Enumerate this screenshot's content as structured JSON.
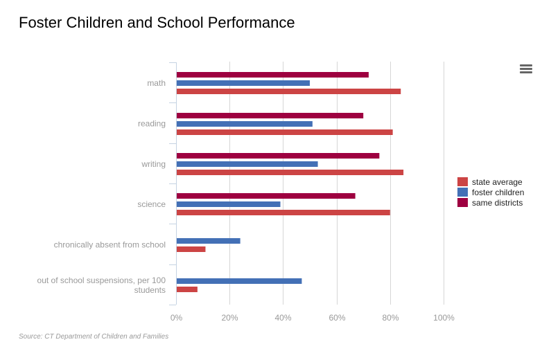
{
  "page": {
    "title": "Foster Children and School Performance",
    "source": "Source: CT Department of Children and Families",
    "menu_icon": "hamburger-menu-icon"
  },
  "chart_data": {
    "type": "bar",
    "orientation": "horizontal",
    "title": "Foster Children and School Performance",
    "xlabel": "",
    "ylabel": "",
    "xlim": [
      0,
      100
    ],
    "x_unit": "%",
    "grid": true,
    "legend_position": "right",
    "ticks": [
      "0%",
      "20%",
      "40%",
      "60%",
      "80%",
      "100%"
    ],
    "tick_values": [
      0,
      20,
      40,
      60,
      80,
      100
    ],
    "categories": [
      "math",
      "reading",
      "writing",
      "science",
      "chronically absent from school",
      "out of school suspensions, per 100 students"
    ],
    "category_label_lines": [
      [
        "math"
      ],
      [
        "reading"
      ],
      [
        "writing"
      ],
      [
        "science"
      ],
      [
        "chronically absent from school"
      ],
      [
        "out of school suspensions, per 100",
        "students"
      ]
    ],
    "series": [
      {
        "name": "state average",
        "color": "#cc4444",
        "values": [
          84,
          81,
          85,
          80,
          11,
          8
        ]
      },
      {
        "name": "foster children",
        "color": "#4370b6",
        "values": [
          50,
          51,
          53,
          39,
          24,
          47
        ]
      },
      {
        "name": "same districts",
        "color": "#9e0040",
        "values": [
          72,
          70,
          76,
          67,
          null,
          null
        ]
      }
    ],
    "draw_order": [
      "same districts",
      "foster children",
      "state average"
    ]
  }
}
